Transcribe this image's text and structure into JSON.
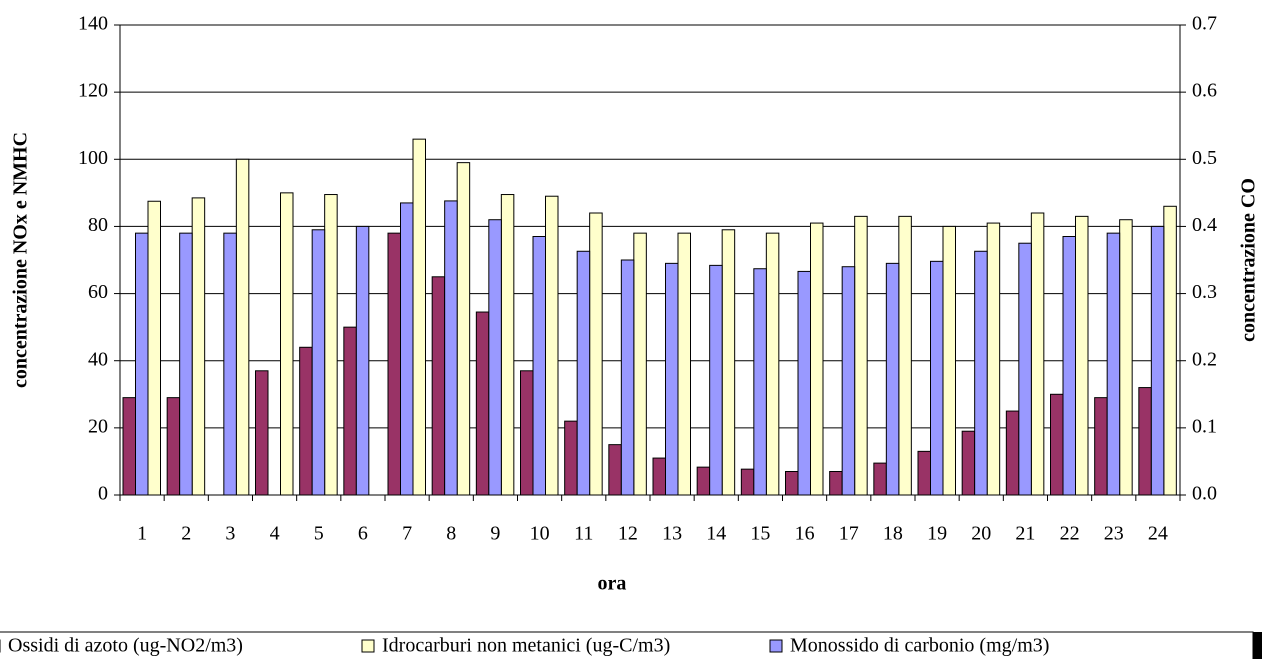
{
  "chart_data": {
    "type": "bar",
    "x_label": "ora",
    "y_label": "concentrazione NOx e NMHC",
    "y2_label": "concentrazione CO",
    "categories": [
      "1",
      "2",
      "3",
      "4",
      "5",
      "6",
      "7",
      "8",
      "9",
      "10",
      "11",
      "12",
      "13",
      "14",
      "15",
      "16",
      "17",
      "18",
      "19",
      "20",
      "21",
      "22",
      "23",
      "24"
    ],
    "series": [
      {
        "name": "Ossidi di azoto (ug-NO2/m3)",
        "color": "#993366",
        "values": [
          29,
          29,
          null,
          37,
          44,
          50,
          78,
          65,
          54.5,
          37,
          22,
          15,
          11,
          8.3,
          7.7,
          7,
          7,
          9.5,
          13,
          19,
          25,
          30,
          29,
          32
        ]
      },
      {
        "name": "Idrocarburi non metanici (ug-C/m3)",
        "color": "#ffffcc",
        "values": [
          87.5,
          88.5,
          100,
          90,
          89.5,
          null,
          106,
          99,
          89.5,
          89,
          84,
          78,
          78,
          79,
          78,
          81,
          83,
          83,
          80,
          81,
          84,
          83,
          82,
          86
        ]
      },
      {
        "name": "Monossido di carbonio (mg/m3)",
        "color": "#9999ff",
        "axis": "y2",
        "values": [
          0.39,
          0.39,
          0.39,
          null,
          0.395,
          0.4,
          0.435,
          0.438,
          0.41,
          0.385,
          0.363,
          0.35,
          0.345,
          0.342,
          0.337,
          0.333,
          0.34,
          0.345,
          0.348,
          0.363,
          0.375,
          0.385,
          0.39,
          0.4
        ]
      }
    ],
    "ylim": [
      0,
      140
    ],
    "yticks": [
      0,
      20,
      40,
      60,
      80,
      100,
      120,
      140
    ],
    "y2lim": [
      0,
      0.7
    ],
    "y2ticks": [
      {
        "value": 0,
        "label": "0.0"
      },
      0.1,
      0.2,
      0.3,
      0.4,
      0.5,
      0.6,
      0.7
    ],
    "grid": true,
    "legend": "bottom"
  }
}
